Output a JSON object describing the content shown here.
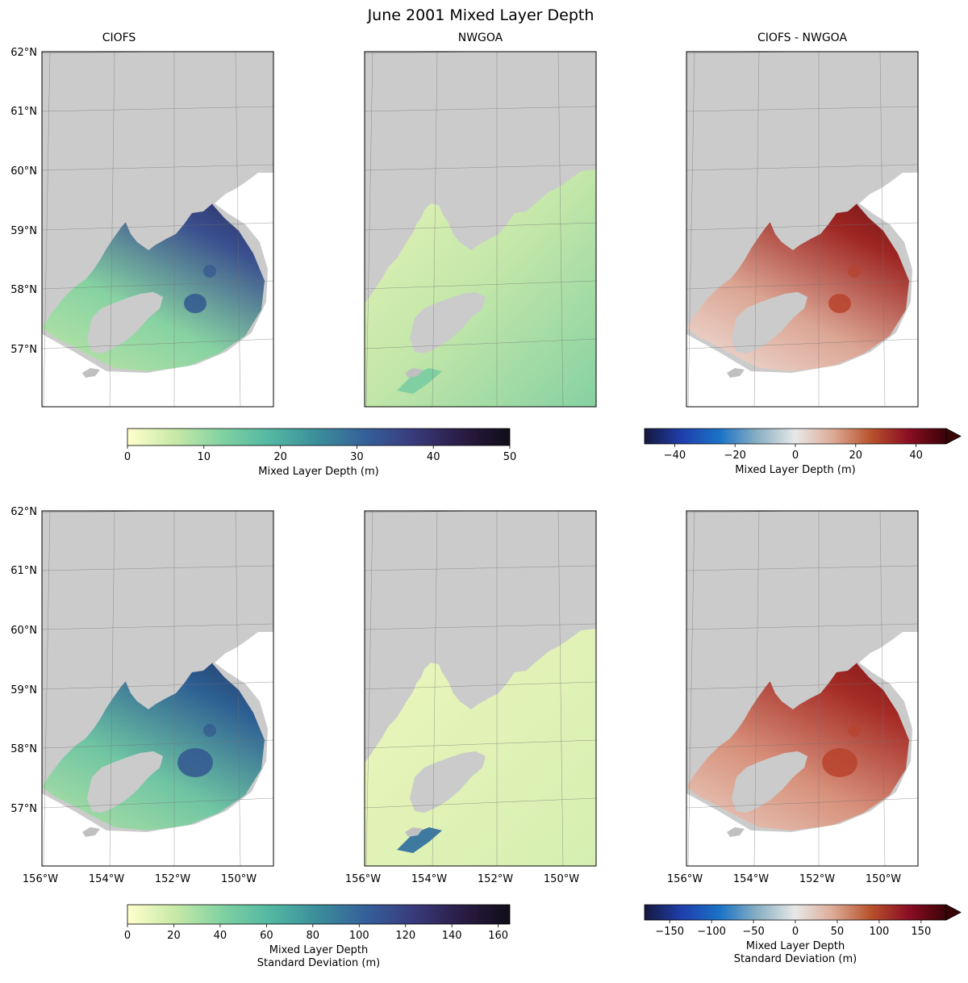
{
  "figure": {
    "title": "June 2001 Mixed Layer Depth"
  },
  "colors": {
    "land": "#cbcbcb",
    "grid": "#707070",
    "frame": "#000000",
    "deep_cmap": [
      "#ffffcc",
      "#c7e9a7",
      "#7fd1a2",
      "#52b7a2",
      "#3b8c9a",
      "#355f9a",
      "#393a7c",
      "#2a1c44",
      "#100d18"
    ],
    "diverging_cmap": [
      "#16193e",
      "#1f3fad",
      "#1b73c6",
      "#8ab0c2",
      "#e8e8e8",
      "#dcaa96",
      "#b8522c",
      "#8a0e23",
      "#3a0308"
    ]
  },
  "chart_data": [
    {
      "type": "heatmap",
      "panel": "top-left",
      "title": "CIOFS",
      "variable": "Mixed Layer Depth (m)",
      "ylabel_ticks": [
        "62°N",
        "61°N",
        "60°N",
        "59°N",
        "58°N",
        "57°N"
      ],
      "xlabel_ticks": [],
      "colorbar_group": "mean-deep"
    },
    {
      "type": "heatmap",
      "panel": "top-middle",
      "title": "NWGOA",
      "variable": "Mixed Layer Depth (m)",
      "ylabel_ticks": [],
      "xlabel_ticks": [],
      "colorbar_group": "mean-deep"
    },
    {
      "type": "heatmap",
      "panel": "top-right",
      "title": "CIOFS - NWGOA",
      "variable": "Mixed Layer Depth (m)",
      "ylabel_ticks": [],
      "xlabel_ticks": [],
      "colorbar_group": "mean-diff"
    },
    {
      "type": "heatmap",
      "panel": "bottom-left",
      "title": "",
      "variable": "Mixed Layer Depth Standard Deviation (m)",
      "ylabel_ticks": [
        "62°N",
        "61°N",
        "60°N",
        "59°N",
        "58°N",
        "57°N"
      ],
      "xlabel_ticks": [
        "156°W",
        "154°W",
        "152°W",
        "150°W"
      ],
      "colorbar_group": "std-deep"
    },
    {
      "type": "heatmap",
      "panel": "bottom-middle",
      "title": "",
      "variable": "Mixed Layer Depth Standard Deviation (m)",
      "ylabel_ticks": [],
      "xlabel_ticks": [
        "156°W",
        "154°W",
        "152°W",
        "150°W"
      ],
      "colorbar_group": "std-deep"
    },
    {
      "type": "heatmap",
      "panel": "bottom-right",
      "title": "",
      "variable": "Mixed Layer Depth Standard Deviation (m)",
      "ylabel_ticks": [],
      "xlabel_ticks": [
        "156°W",
        "154°W",
        "152°W",
        "150°W"
      ],
      "colorbar_group": "std-diff"
    }
  ],
  "colorbars": [
    {
      "id": "mean-deep",
      "label_lines": [
        "Mixed Layer Depth (m)"
      ],
      "range": [
        0,
        50
      ],
      "ticks": [
        0,
        10,
        20,
        30,
        40,
        50
      ],
      "tick_labels": [
        "0",
        "10",
        "20",
        "30",
        "40",
        "50"
      ],
      "cmap": "deep_cmap",
      "extend": "neither"
    },
    {
      "id": "mean-diff",
      "label_lines": [
        "Mixed Layer Depth (m)"
      ],
      "range": [
        -50,
        50
      ],
      "ticks": [
        -40,
        -20,
        0,
        20,
        40
      ],
      "tick_labels": [
        "−40",
        "−20",
        "0",
        "20",
        "40"
      ],
      "cmap": "diverging_cmap",
      "extend": "max"
    },
    {
      "id": "std-deep",
      "label_lines": [
        "Mixed Layer Depth",
        "Standard Deviation (m)"
      ],
      "range": [
        0,
        165
      ],
      "ticks": [
        0,
        20,
        40,
        60,
        80,
        100,
        120,
        140,
        160
      ],
      "tick_labels": [
        "0",
        "20",
        "40",
        "60",
        "80",
        "100",
        "120",
        "140",
        "160"
      ],
      "cmap": "deep_cmap",
      "extend": "neither"
    },
    {
      "id": "std-diff",
      "label_lines": [
        "Mixed Layer Depth",
        "Standard Deviation (m)"
      ],
      "range": [
        -180,
        180
      ],
      "ticks": [
        -150,
        -100,
        -50,
        0,
        50,
        100,
        150
      ],
      "tick_labels": [
        "−150",
        "−100",
        "−50",
        "0",
        "50",
        "100",
        "150"
      ],
      "cmap": "diverging_cmap",
      "extend": "max"
    }
  ]
}
